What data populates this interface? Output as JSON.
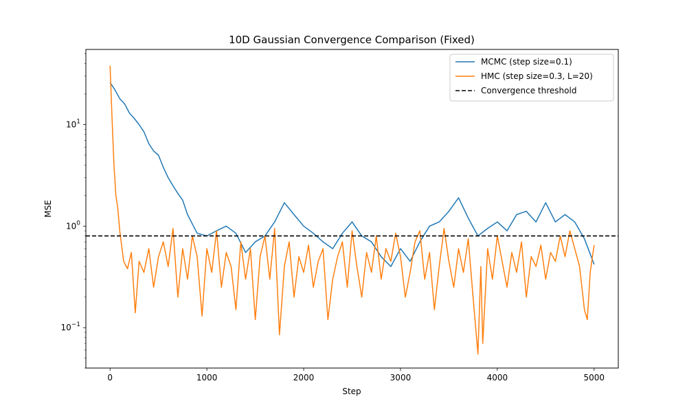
{
  "chart_data": {
    "type": "line",
    "title": "10D Gaussian Convergence Comparison (Fixed)",
    "xlabel": "Step",
    "ylabel": "MSE",
    "xlim": [
      -250,
      5250
    ],
    "ylim": [
      0.04,
      55
    ],
    "yscale": "log",
    "grid": false,
    "legend_position": "top-right",
    "x_ticks": [
      0,
      1000,
      2000,
      3000,
      4000,
      5000
    ],
    "x_tick_labels": [
      "0",
      "1000",
      "2000",
      "3000",
      "4000",
      "5000"
    ],
    "y_ticks": [
      0.1,
      1,
      10
    ],
    "y_tick_labels": [
      {
        "base": "10",
        "exp": "−1"
      },
      {
        "base": "10",
        "exp": "0"
      },
      {
        "base": "10",
        "exp": "1"
      }
    ],
    "series": [
      {
        "name": "MCMC (step size=0.1)",
        "color": "#1f77b4",
        "style": "solid",
        "x": [
          0,
          50,
          100,
          150,
          200,
          250,
          300,
          350,
          400,
          450,
          500,
          550,
          600,
          650,
          700,
          750,
          800,
          850,
          900,
          1000,
          1100,
          1200,
          1300,
          1400,
          1500,
          1600,
          1700,
          1800,
          1900,
          2000,
          2100,
          2200,
          2300,
          2400,
          2500,
          2600,
          2700,
          2800,
          2900,
          3000,
          3100,
          3200,
          3300,
          3400,
          3500,
          3600,
          3700,
          3800,
          3900,
          4000,
          4100,
          4200,
          4300,
          4400,
          4500,
          4600,
          4700,
          4800,
          4900,
          5000
        ],
        "y": [
          26,
          22,
          18,
          16,
          13,
          11.5,
          10,
          8.5,
          6.5,
          5.5,
          5,
          3.8,
          3,
          2.5,
          2.1,
          1.8,
          1.3,
          1.05,
          0.85,
          0.8,
          0.9,
          1.0,
          0.85,
          0.55,
          0.7,
          0.8,
          1.1,
          1.7,
          1.3,
          1.0,
          0.85,
          0.7,
          0.6,
          0.85,
          1.1,
          0.8,
          0.7,
          0.5,
          0.4,
          0.6,
          0.45,
          0.7,
          1.0,
          1.1,
          1.4,
          1.9,
          1.2,
          0.8,
          0.95,
          1.1,
          0.9,
          1.3,
          1.4,
          1.1,
          1.7,
          1.1,
          1.3,
          1.1,
          0.75,
          0.42
        ]
      },
      {
        "name": "HMC (step size=0.3, L=20)",
        "color": "#ff7f0e",
        "style": "solid",
        "x": [
          0,
          20,
          40,
          60,
          80,
          100,
          140,
          180,
          220,
          260,
          300,
          350,
          400,
          450,
          500,
          550,
          600,
          650,
          700,
          750,
          800,
          850,
          900,
          950,
          1000,
          1050,
          1100,
          1150,
          1200,
          1250,
          1300,
          1350,
          1400,
          1450,
          1500,
          1550,
          1600,
          1650,
          1700,
          1750,
          1800,
          1850,
          1900,
          1950,
          2000,
          2050,
          2100,
          2150,
          2200,
          2250,
          2300,
          2350,
          2400,
          2450,
          2500,
          2550,
          2600,
          2650,
          2700,
          2750,
          2800,
          2850,
          2900,
          2950,
          3000,
          3050,
          3100,
          3150,
          3200,
          3250,
          3300,
          3350,
          3400,
          3450,
          3500,
          3550,
          3600,
          3650,
          3700,
          3750,
          3800,
          3830,
          3850,
          3900,
          3950,
          4000,
          4050,
          4100,
          4150,
          4200,
          4250,
          4300,
          4350,
          4400,
          4450,
          4500,
          4550,
          4600,
          4650,
          4700,
          4750,
          4800,
          4850,
          4900,
          4930,
          4960,
          5000
        ],
        "y": [
          38,
          12,
          4,
          2,
          1.5,
          0.9,
          0.45,
          0.38,
          0.55,
          0.14,
          0.45,
          0.35,
          0.6,
          0.25,
          0.5,
          0.7,
          0.4,
          0.95,
          0.2,
          0.6,
          0.3,
          0.8,
          0.5,
          0.13,
          0.6,
          0.35,
          0.9,
          0.25,
          0.55,
          0.4,
          0.15,
          0.7,
          0.3,
          0.6,
          0.12,
          0.5,
          0.8,
          0.3,
          0.95,
          0.085,
          0.4,
          0.7,
          0.2,
          0.5,
          0.35,
          0.65,
          0.25,
          0.45,
          0.6,
          0.12,
          0.3,
          0.5,
          0.7,
          0.25,
          0.9,
          0.4,
          0.2,
          0.55,
          0.35,
          0.8,
          0.3,
          0.6,
          0.45,
          0.85,
          0.5,
          0.2,
          0.35,
          0.7,
          0.9,
          0.3,
          0.55,
          0.15,
          0.4,
          0.95,
          0.45,
          0.25,
          0.6,
          0.35,
          0.75,
          0.2,
          0.055,
          0.4,
          0.07,
          0.6,
          0.3,
          0.8,
          0.45,
          0.25,
          0.55,
          0.35,
          0.7,
          0.2,
          0.5,
          0.4,
          0.65,
          0.3,
          0.55,
          0.45,
          0.8,
          0.5,
          0.9,
          0.6,
          0.4,
          0.15,
          0.12,
          0.35,
          0.65
        ]
      },
      {
        "name": "Convergence threshold",
        "color": "#000000",
        "style": "dashed",
        "x": [
          -250,
          5250
        ],
        "y": [
          0.8,
          0.8
        ]
      }
    ]
  }
}
